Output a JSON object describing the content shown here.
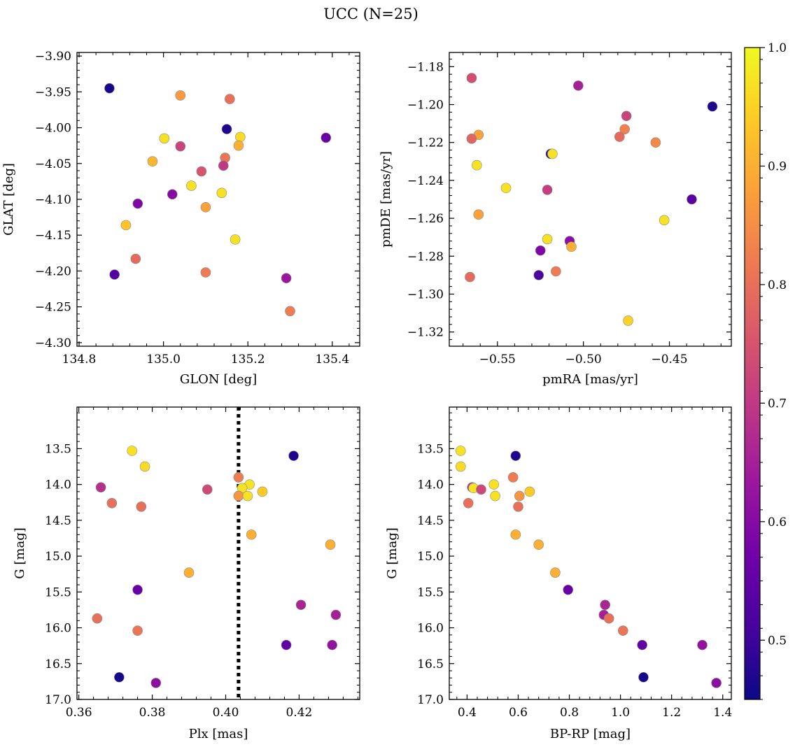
{
  "title": "UCC (N=25)",
  "colormap": {
    "name": "plasma",
    "range": [
      0.45,
      1.0
    ],
    "ticks": [
      0.5,
      0.6,
      0.7,
      0.8,
      0.9,
      1.0
    ],
    "tick_labels": [
      "0.5",
      "0.6",
      "0.7",
      "0.8",
      "0.9",
      "1.0"
    ],
    "stops": [
      "#0d0887",
      "#46039f",
      "#7201a8",
      "#9c179e",
      "#bd3786",
      "#d8576b",
      "#ed7953",
      "#fb9f3a",
      "#fdca26",
      "#f0f921"
    ]
  },
  "chart_data": [
    {
      "type": "scatter",
      "xlabel": "GLON [deg]",
      "ylabel": "GLAT [deg]",
      "xlim": [
        134.795,
        135.465
      ],
      "ylim": [
        -4.305,
        -3.895
      ],
      "y_inverted": false,
      "xticks": [
        134.8,
        135.0,
        135.2,
        135.4
      ],
      "xtick_labels": [
        "134.8",
        "135.0",
        "135.2",
        "135.4"
      ],
      "yticks": [
        -4.3,
        -4.25,
        -4.2,
        -4.15,
        -4.1,
        -4.05,
        -4.0,
        -3.95,
        -3.9
      ],
      "ytick_labels": [
        "−4.30",
        "−4.25",
        "−4.20",
        "−4.15",
        "−4.10",
        "−4.05",
        "−4.00",
        "−3.95",
        "−3.90"
      ],
      "points": [
        {
          "x": 134.872,
          "y": -3.945,
          "c": 0.46
        },
        {
          "x": 135.04,
          "y": -3.955,
          "c": 0.87
        },
        {
          "x": 135.157,
          "y": -3.96,
          "c": 0.8
        },
        {
          "x": 135.15,
          "y": -4.002,
          "c": 0.47
        },
        {
          "x": 135.182,
          "y": -4.013,
          "c": 0.96
        },
        {
          "x": 135.385,
          "y": -4.014,
          "c": 0.56
        },
        {
          "x": 135.002,
          "y": -4.015,
          "c": 0.97
        },
        {
          "x": 135.178,
          "y": -4.025,
          "c": 0.9
        },
        {
          "x": 135.04,
          "y": -4.026,
          "c": 0.72
        },
        {
          "x": 135.146,
          "y": -4.042,
          "c": 0.81
        },
        {
          "x": 134.974,
          "y": -4.047,
          "c": 0.91
        },
        {
          "x": 135.142,
          "y": -4.053,
          "c": 0.7
        },
        {
          "x": 135.09,
          "y": -4.061,
          "c": 0.75
        },
        {
          "x": 135.066,
          "y": -4.081,
          "c": 0.97
        },
        {
          "x": 135.138,
          "y": -4.091,
          "c": 0.97
        },
        {
          "x": 135.021,
          "y": -4.093,
          "c": 0.6
        },
        {
          "x": 134.939,
          "y": -4.106,
          "c": 0.59
        },
        {
          "x": 135.1,
          "y": -4.111,
          "c": 0.88
        },
        {
          "x": 134.911,
          "y": -4.136,
          "c": 0.93
        },
        {
          "x": 135.17,
          "y": -4.156,
          "c": 0.97
        },
        {
          "x": 134.934,
          "y": -4.183,
          "c": 0.79
        },
        {
          "x": 135.1,
          "y": -4.202,
          "c": 0.82
        },
        {
          "x": 134.884,
          "y": -4.205,
          "c": 0.53
        },
        {
          "x": 135.291,
          "y": -4.21,
          "c": 0.63
        },
        {
          "x": 135.3,
          "y": -4.256,
          "c": 0.82
        }
      ]
    },
    {
      "type": "scatter",
      "xlabel": "pmRA [mas/yr]",
      "ylabel": "pmDE [mas/yr]",
      "xlim": [
        -0.578,
        -0.414
      ],
      "ylim": [
        -1.3275,
        -1.1725
      ],
      "y_inverted": false,
      "xticks": [
        -0.55,
        -0.5,
        -0.45
      ],
      "xtick_labels": [
        "−0.55",
        "−0.50",
        "−0.45"
      ],
      "yticks": [
        -1.32,
        -1.3,
        -1.28,
        -1.26,
        -1.24,
        -1.22,
        -1.2,
        -1.18
      ],
      "ytick_labels": [
        "−1.32",
        "−1.30",
        "−1.28",
        "−1.26",
        "−1.24",
        "−1.22",
        "−1.20",
        "−1.18"
      ],
      "points": [
        {
          "x": -0.565,
          "y": -1.186,
          "c": 0.74
        },
        {
          "x": -0.503,
          "y": -1.19,
          "c": 0.65
        },
        {
          "x": -0.425,
          "y": -1.201,
          "c": 0.47
        },
        {
          "x": -0.475,
          "y": -1.206,
          "c": 0.72
        },
        {
          "x": -0.476,
          "y": -1.213,
          "c": 0.83
        },
        {
          "x": -0.561,
          "y": -1.216,
          "c": 0.88
        },
        {
          "x": -0.479,
          "y": -1.217,
          "c": 0.79
        },
        {
          "x": -0.565,
          "y": -1.218,
          "c": 0.78
        },
        {
          "x": -0.458,
          "y": -1.22,
          "c": 0.84
        },
        {
          "x": -0.519,
          "y": -1.226,
          "c": 0.47
        },
        {
          "x": -0.518,
          "y": -1.226,
          "c": 0.97
        },
        {
          "x": -0.562,
          "y": -1.232,
          "c": 0.97
        },
        {
          "x": -0.545,
          "y": -1.244,
          "c": 0.97
        },
        {
          "x": -0.521,
          "y": -1.245,
          "c": 0.71
        },
        {
          "x": -0.437,
          "y": -1.25,
          "c": 0.54
        },
        {
          "x": -0.561,
          "y": -1.258,
          "c": 0.88
        },
        {
          "x": -0.453,
          "y": -1.261,
          "c": 0.97
        },
        {
          "x": -0.521,
          "y": -1.271,
          "c": 0.97
        },
        {
          "x": -0.508,
          "y": -1.272,
          "c": 0.61
        },
        {
          "x": -0.507,
          "y": -1.275,
          "c": 0.9
        },
        {
          "x": -0.525,
          "y": -1.277,
          "c": 0.59
        },
        {
          "x": -0.516,
          "y": -1.288,
          "c": 0.82
        },
        {
          "x": -0.526,
          "y": -1.29,
          "c": 0.52
        },
        {
          "x": -0.566,
          "y": -1.291,
          "c": 0.79
        },
        {
          "x": -0.474,
          "y": -1.314,
          "c": 0.95
        }
      ]
    },
    {
      "type": "scatter",
      "xlabel": "Plx [mas]",
      "ylabel": "G [mag]",
      "xlim": [
        0.3595,
        0.4365
      ],
      "ylim": [
        17.0,
        12.92
      ],
      "y_inverted": true,
      "xticks": [
        0.36,
        0.38,
        0.4,
        0.42
      ],
      "xtick_labels": [
        "0.36",
        "0.38",
        "0.40",
        "0.42"
      ],
      "yticks": [
        13.5,
        14.0,
        14.5,
        15.0,
        15.5,
        16.0,
        16.5,
        17.0
      ],
      "ytick_labels": [
        "13.5",
        "14.0",
        "14.5",
        "15.0",
        "15.5",
        "16.0",
        "16.5",
        "17.0"
      ],
      "vline": {
        "x": 0.4035,
        "style": "dotted"
      },
      "points": [
        {
          "x": 0.3745,
          "y": 13.53,
          "c": 0.97
        },
        {
          "x": 0.4185,
          "y": 13.6,
          "c": 0.47
        },
        {
          "x": 0.378,
          "y": 13.75,
          "c": 0.96
        },
        {
          "x": 0.4035,
          "y": 13.9,
          "c": 0.82
        },
        {
          "x": 0.4065,
          "y": 14.0,
          "c": 0.97
        },
        {
          "x": 0.366,
          "y": 14.04,
          "c": 0.68
        },
        {
          "x": 0.4045,
          "y": 14.05,
          "c": 0.97
        },
        {
          "x": 0.395,
          "y": 14.07,
          "c": 0.73
        },
        {
          "x": 0.41,
          "y": 14.1,
          "c": 0.94
        },
        {
          "x": 0.4035,
          "y": 14.16,
          "c": 0.86
        },
        {
          "x": 0.406,
          "y": 14.16,
          "c": 0.97
        },
        {
          "x": 0.369,
          "y": 14.26,
          "c": 0.8
        },
        {
          "x": 0.377,
          "y": 14.31,
          "c": 0.8
        },
        {
          "x": 0.407,
          "y": 14.7,
          "c": 0.9
        },
        {
          "x": 0.4285,
          "y": 14.84,
          "c": 0.9
        },
        {
          "x": 0.39,
          "y": 15.23,
          "c": 0.9
        },
        {
          "x": 0.376,
          "y": 15.47,
          "c": 0.56
        },
        {
          "x": 0.4205,
          "y": 15.68,
          "c": 0.66
        },
        {
          "x": 0.43,
          "y": 15.82,
          "c": 0.65
        },
        {
          "x": 0.365,
          "y": 15.87,
          "c": 0.8
        },
        {
          "x": 0.376,
          "y": 16.04,
          "c": 0.81
        },
        {
          "x": 0.4165,
          "y": 16.24,
          "c": 0.55
        },
        {
          "x": 0.429,
          "y": 16.24,
          "c": 0.62
        },
        {
          "x": 0.371,
          "y": 16.69,
          "c": 0.46
        },
        {
          "x": 0.381,
          "y": 16.77,
          "c": 0.61
        }
      ]
    },
    {
      "type": "scatter",
      "xlabel": "BP-RP [mag]",
      "ylabel": "G [mag]",
      "xlim": [
        0.3305,
        1.4335
      ],
      "ylim": [
        17.0,
        12.92
      ],
      "y_inverted": true,
      "xticks": [
        0.4,
        0.6,
        0.8,
        1.0,
        1.2,
        1.4
      ],
      "xtick_labels": [
        "0.4",
        "0.6",
        "0.8",
        "1.0",
        "1.2",
        "1.4"
      ],
      "yticks": [
        13.5,
        14.0,
        14.5,
        15.0,
        15.5,
        16.0,
        16.5,
        17.0
      ],
      "ytick_labels": [
        "13.5",
        "14.0",
        "14.5",
        "15.0",
        "15.5",
        "16.0",
        "16.5",
        "17.0"
      ],
      "points": [
        {
          "x": 0.375,
          "y": 13.53,
          "c": 0.97
        },
        {
          "x": 0.59,
          "y": 13.6,
          "c": 0.47
        },
        {
          "x": 0.375,
          "y": 13.75,
          "c": 0.96
        },
        {
          "x": 0.58,
          "y": 13.9,
          "c": 0.82
        },
        {
          "x": 0.505,
          "y": 14.0,
          "c": 0.97
        },
        {
          "x": 0.42,
          "y": 14.04,
          "c": 0.68
        },
        {
          "x": 0.425,
          "y": 14.05,
          "c": 0.97
        },
        {
          "x": 0.455,
          "y": 14.07,
          "c": 0.73
        },
        {
          "x": 0.645,
          "y": 14.1,
          "c": 0.94
        },
        {
          "x": 0.605,
          "y": 14.16,
          "c": 0.86
        },
        {
          "x": 0.51,
          "y": 14.16,
          "c": 0.97
        },
        {
          "x": 0.405,
          "y": 14.26,
          "c": 0.8
        },
        {
          "x": 0.6,
          "y": 14.31,
          "c": 0.8
        },
        {
          "x": 0.59,
          "y": 14.7,
          "c": 0.9
        },
        {
          "x": 0.68,
          "y": 14.84,
          "c": 0.9
        },
        {
          "x": 0.745,
          "y": 15.23,
          "c": 0.9
        },
        {
          "x": 0.795,
          "y": 15.47,
          "c": 0.56
        },
        {
          "x": 0.94,
          "y": 15.68,
          "c": 0.66
        },
        {
          "x": 0.935,
          "y": 15.82,
          "c": 0.65
        },
        {
          "x": 0.955,
          "y": 15.87,
          "c": 0.8
        },
        {
          "x": 1.01,
          "y": 16.04,
          "c": 0.81
        },
        {
          "x": 1.085,
          "y": 16.24,
          "c": 0.55
        },
        {
          "x": 1.32,
          "y": 16.24,
          "c": 0.62
        },
        {
          "x": 1.09,
          "y": 16.69,
          "c": 0.46
        },
        {
          "x": 1.375,
          "y": 16.77,
          "c": 0.61
        }
      ]
    }
  ]
}
